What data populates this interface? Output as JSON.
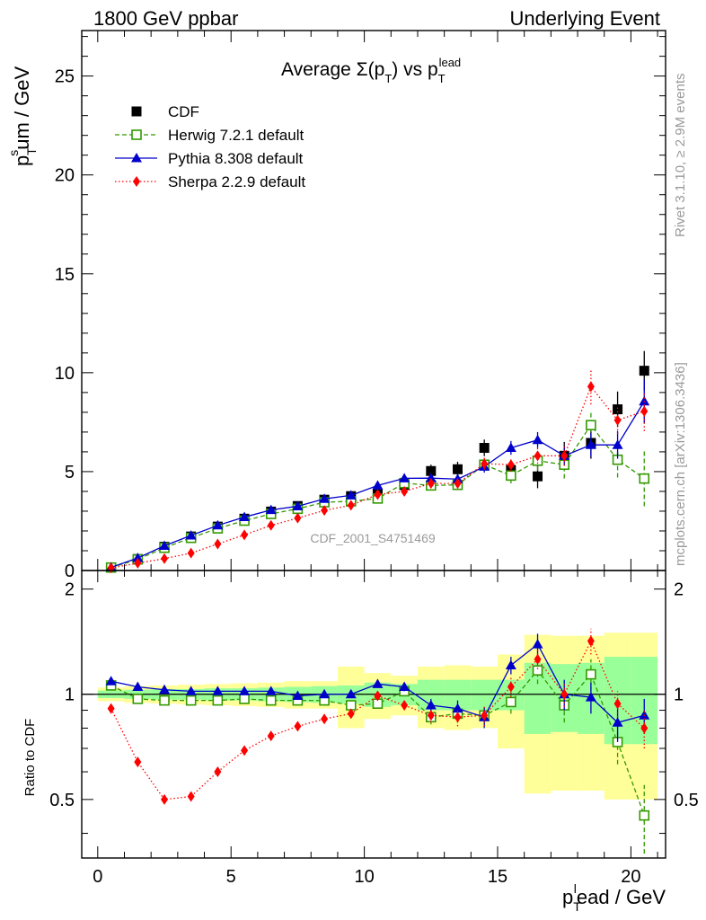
{
  "header": {
    "left": "1800 GeV ppbar",
    "right": "Underlying Event"
  },
  "side_labels": {
    "rivet": "Rivet 3.1.10, ≥ 2.9M events",
    "mcplots": "mcplots.cern.ch [arXiv:1306.3436]"
  },
  "watermark": "CDF_2001_S4751469",
  "chart_data": [
    {
      "type": "scatter",
      "title": "Average Σ(p_T) vs p_T^lead",
      "title_main": "Average Σ(p",
      "title_sub_T1": "T",
      "title_mid": ") vs p",
      "title_sub_T2": "T",
      "title_sup_lead": "lead",
      "ylabel_main": "p",
      "ylabel_sup": "s",
      "ylabel_sub": "T",
      "ylabel_rest": "um / GeV",
      "xlim": [
        -0.6,
        21.3
      ],
      "ylim": [
        0,
        27.3
      ],
      "yticks": [
        0,
        5,
        10,
        15,
        20,
        25
      ],
      "legend_position": "top-left",
      "x": [
        0.5,
        1.5,
        2.5,
        3.5,
        4.5,
        5.5,
        6.5,
        7.5,
        8.5,
        9.5,
        10.5,
        11.5,
        12.5,
        13.5,
        14.5,
        15.5,
        16.5,
        17.5,
        18.5,
        19.5,
        20.5
      ],
      "series": [
        {
          "name": "CDF",
          "color": "#000000",
          "marker": "square",
          "values": [
            0.14,
            0.58,
            1.2,
            1.72,
            2.22,
            2.62,
            2.98,
            3.26,
            3.58,
            3.76,
            3.88,
            4.32,
            5.03,
            5.12,
            6.2,
            5.08,
            4.76,
            5.8,
            6.45,
            8.15,
            10.1
          ],
          "errors": [
            0.03,
            0.05,
            0.08,
            0.1,
            0.12,
            0.14,
            0.16,
            0.18,
            0.2,
            0.22,
            0.25,
            0.28,
            0.32,
            0.38,
            0.42,
            0.5,
            0.6,
            0.7,
            0.8,
            0.9,
            1.0
          ]
        },
        {
          "name": "Herwig 7.2.1 default",
          "color": "#339900",
          "marker": "open-square",
          "line": "dashed",
          "values": [
            0.15,
            0.56,
            1.15,
            1.65,
            2.13,
            2.52,
            2.86,
            3.12,
            3.45,
            3.5,
            3.64,
            4.42,
            4.3,
            4.33,
            5.35,
            4.8,
            5.55,
            5.35,
            7.35,
            5.6,
            4.65
          ],
          "errors": [
            0.01,
            0.02,
            0.03,
            0.03,
            0.04,
            0.05,
            0.06,
            0.07,
            0.08,
            0.1,
            0.12,
            0.15,
            0.2,
            0.25,
            0.3,
            0.4,
            0.5,
            0.7,
            0.7,
            0.9,
            1.4
          ]
        },
        {
          "name": "Pythia 8.308 default",
          "color": "#0000cc",
          "marker": "triangle",
          "line": "solid",
          "values": [
            0.16,
            0.63,
            1.25,
            1.77,
            2.28,
            2.7,
            3.06,
            3.25,
            3.62,
            3.8,
            4.3,
            4.66,
            4.67,
            4.62,
            5.25,
            6.2,
            6.6,
            5.8,
            6.35,
            6.35,
            8.55
          ],
          "errors": [
            0.01,
            0.02,
            0.03,
            0.03,
            0.04,
            0.05,
            0.06,
            0.07,
            0.08,
            0.1,
            0.12,
            0.15,
            0.2,
            0.25,
            0.3,
            0.35,
            0.4,
            0.5,
            0.6,
            0.7,
            1.1
          ]
        },
        {
          "name": "Sherpa 2.2.9 default",
          "color": "#ff0000",
          "marker": "diamond",
          "line": "dotted",
          "values": [
            0.13,
            0.37,
            0.6,
            0.88,
            1.34,
            1.8,
            2.28,
            2.65,
            3.04,
            3.3,
            3.84,
            4.0,
            4.4,
            4.4,
            5.4,
            5.35,
            5.8,
            5.8,
            9.3,
            7.6,
            8.05
          ],
          "errors": [
            0.01,
            0.02,
            0.03,
            0.03,
            0.04,
            0.05,
            0.06,
            0.07,
            0.08,
            0.1,
            0.12,
            0.15,
            0.2,
            0.25,
            0.3,
            0.35,
            0.4,
            0.5,
            0.9,
            0.7,
            1.0
          ]
        }
      ]
    },
    {
      "type": "scatter",
      "title": "",
      "ylabel": "Ratio to CDF",
      "xlabel_main": "p",
      "xlabel_sup": "l",
      "xlabel_sub": "T",
      "xlabel_rest": "ead / GeV",
      "xlim": [
        -0.6,
        21.3
      ],
      "ylim": [
        0.34,
        2.26
      ],
      "yticks": [
        0.5,
        1,
        2
      ],
      "ytick_labels": [
        "0.5",
        "1",
        "2"
      ],
      "xticks": [
        0,
        5,
        10,
        15,
        20
      ],
      "reference_line": 1,
      "x": [
        0.5,
        1.5,
        2.5,
        3.5,
        4.5,
        5.5,
        6.5,
        7.5,
        8.5,
        9.5,
        10.5,
        11.5,
        12.5,
        13.5,
        14.5,
        15.5,
        16.5,
        17.5,
        18.5,
        19.5,
        20.5
      ],
      "bands": {
        "green_half": [
          0.025,
          0.03,
          0.035,
          0.035,
          0.04,
          0.04,
          0.045,
          0.05,
          0.055,
          0.06,
          0.08,
          0.07,
          0.1,
          0.1,
          0.1,
          0.1,
          0.23,
          0.22,
          0.23,
          0.28,
          0.28
        ],
        "yellow_half": [
          0.045,
          0.055,
          0.06,
          0.065,
          0.07,
          0.075,
          0.08,
          0.09,
          0.09,
          0.2,
          0.15,
          0.13,
          0.2,
          0.21,
          0.2,
          0.3,
          0.48,
          0.47,
          0.47,
          0.5,
          0.5
        ]
      },
      "series": [
        {
          "name": "Herwig 7.2.1 default",
          "color": "#339900",
          "marker": "open-square",
          "line": "dashed",
          "values": [
            1.06,
            0.97,
            0.96,
            0.96,
            0.96,
            0.97,
            0.96,
            0.96,
            0.96,
            0.93,
            0.94,
            1.02,
            0.86,
            0.88,
            0.87,
            0.95,
            1.17,
            0.93,
            1.14,
            0.73,
            0.45
          ],
          "errors": [
            0.005,
            0.005,
            0.006,
            0.006,
            0.007,
            0.008,
            0.009,
            0.01,
            0.012,
            0.015,
            0.02,
            0.03,
            0.04,
            0.05,
            0.06,
            0.07,
            0.1,
            0.1,
            0.12,
            0.1,
            0.1
          ]
        },
        {
          "name": "Pythia 8.308 default",
          "color": "#0000cc",
          "marker": "triangle",
          "line": "solid",
          "values": [
            1.09,
            1.05,
            1.03,
            1.02,
            1.02,
            1.02,
            1.02,
            0.99,
            1.0,
            1.0,
            1.07,
            1.05,
            0.93,
            0.91,
            0.86,
            1.21,
            1.39,
            1.0,
            0.98,
            0.83,
            0.87
          ],
          "errors": [
            0.005,
            0.005,
            0.006,
            0.006,
            0.007,
            0.008,
            0.009,
            0.01,
            0.012,
            0.015,
            0.02,
            0.03,
            0.04,
            0.05,
            0.06,
            0.07,
            0.1,
            0.1,
            0.1,
            0.1,
            0.1
          ]
        },
        {
          "name": "Sherpa 2.2.9 default",
          "color": "#ff0000",
          "marker": "diamond",
          "line": "dotted",
          "values": [
            0.91,
            0.64,
            0.5,
            0.51,
            0.6,
            0.69,
            0.76,
            0.81,
            0.85,
            0.88,
            0.99,
            0.93,
            0.87,
            0.86,
            0.87,
            1.05,
            1.26,
            1.0,
            1.42,
            0.94,
            0.8
          ],
          "errors": [
            0.005,
            0.005,
            0.006,
            0.006,
            0.007,
            0.008,
            0.009,
            0.01,
            0.012,
            0.015,
            0.02,
            0.03,
            0.04,
            0.05,
            0.06,
            0.07,
            0.08,
            0.08,
            0.12,
            0.08,
            0.1
          ]
        }
      ]
    }
  ]
}
